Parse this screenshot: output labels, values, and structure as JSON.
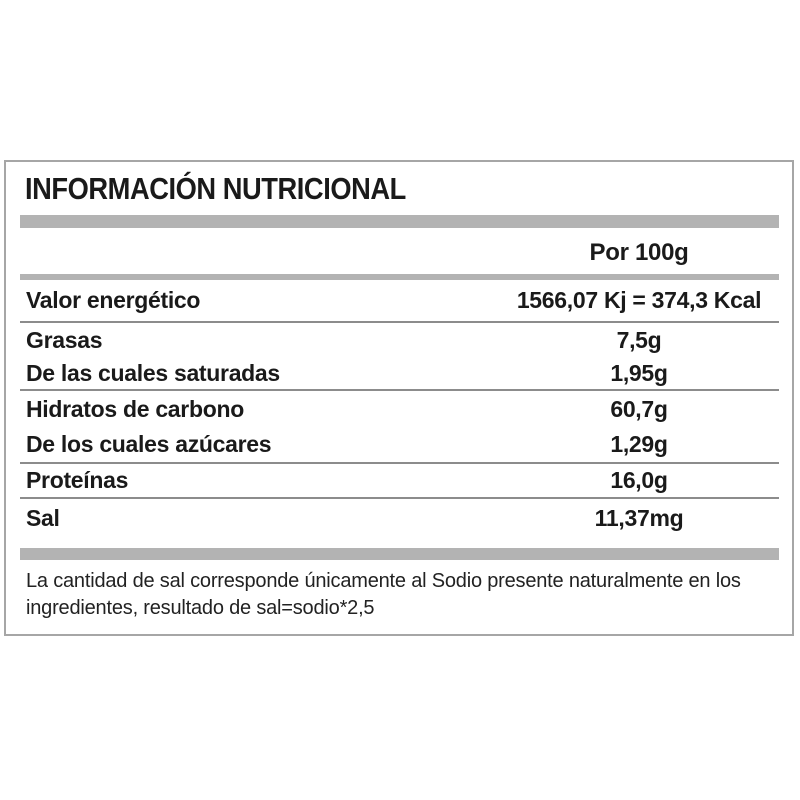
{
  "label": {
    "title": "INFORMACIÓN NUTRICIONAL",
    "column_header": "Por 100g",
    "rows": [
      {
        "label": "Valor energético",
        "value": "1566,07 Kj = 374,3 Kcal"
      },
      {
        "label": "Grasas",
        "value": "7,5g"
      },
      {
        "label": "De las cuales saturadas",
        "value": "1,95g"
      },
      {
        "label": "Hidratos de carbono",
        "value": "60,7g"
      },
      {
        "label": "De los cuales azúcares",
        "value": "1,29g"
      },
      {
        "label": "Proteínas",
        "value": "16,0g"
      },
      {
        "label": "Sal",
        "value": "11,37mg"
      }
    ],
    "footnote_lines": [
      "La cantidad de sal corresponde únicamente al Sodio presente naturalmente en los",
      "ingredientes, resultado de sal=sodio*2,5"
    ],
    "colors": {
      "bar_gray": "#b3b3b3",
      "panel_border_gray": "#a6a6a6",
      "separator_gray": "#8c8c8c",
      "text": "#1a1a1a"
    }
  }
}
